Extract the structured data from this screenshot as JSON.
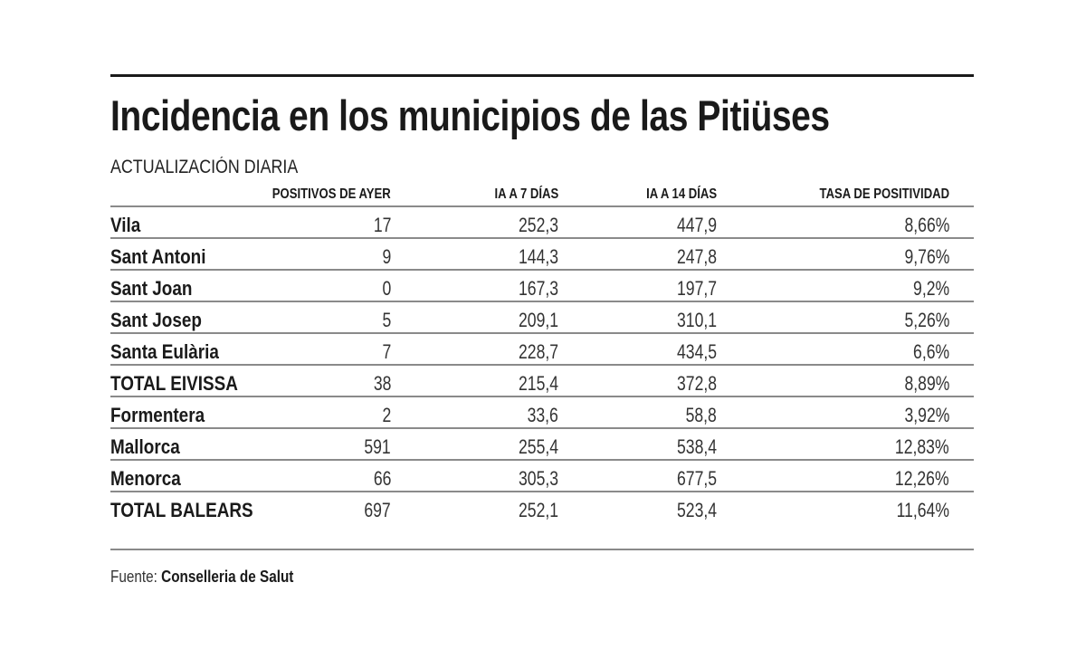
{
  "title": "Incidencia en los municipios de las Pitiüses",
  "subtitle": "ACTUALIZACIÓN DIARIA",
  "source_label": "Fuente:",
  "source_name": "Conselleria de Salut",
  "chart_data": {
    "type": "table",
    "columns": [
      "",
      "POSITIVOS DE AYER",
      "IA A 7 DÍAS",
      "IA A 14 DÍAS",
      "TASA DE POSITIVIDAD"
    ],
    "rows": [
      [
        "Vila",
        "17",
        "252,3",
        "447,9",
        "8,66%"
      ],
      [
        "Sant Antoni",
        "9",
        "144,3",
        "247,8",
        "9,76%"
      ],
      [
        "Sant Joan",
        "0",
        "167,3",
        "197,7",
        "9,2%"
      ],
      [
        "Sant Josep",
        "5",
        "209,1",
        "310,1",
        "5,26%"
      ],
      [
        "Santa Eulària",
        "7",
        "228,7",
        "434,5",
        "6,6%"
      ],
      [
        "TOTAL EIVISSA",
        "38",
        "215,4",
        "372,8",
        "8,89%"
      ],
      [
        "Formentera",
        "2",
        "33,6",
        "58,8",
        "3,92%"
      ],
      [
        "Mallorca",
        "591",
        "255,4",
        "538,4",
        "12,83%"
      ],
      [
        "Menorca",
        "66",
        "305,3",
        "677,5",
        "12,26%"
      ],
      [
        "TOTAL BALEARS",
        "697",
        "252,1",
        "523,4",
        "11,64%"
      ]
    ]
  }
}
